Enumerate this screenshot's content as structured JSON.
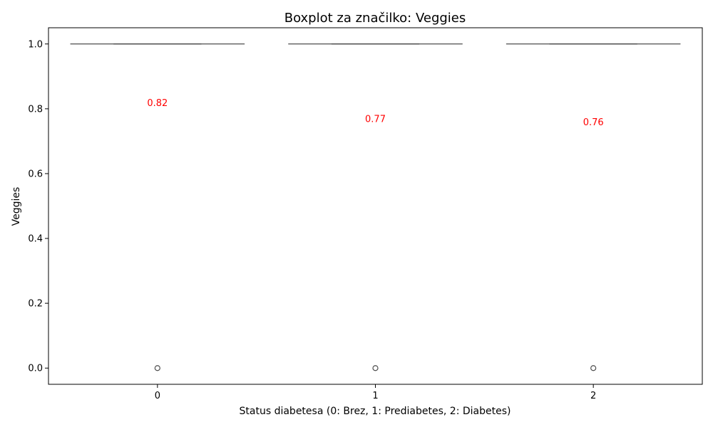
{
  "chart_data": {
    "type": "box",
    "title": "Boxplot za značilko: Veggies",
    "xlabel": "Status diabetesa (0: Brez, 1: Prediabetes, 2: Diabetes)",
    "ylabel": "Veggies",
    "categories": [
      "0",
      "1",
      "2"
    ],
    "ylim": [
      -0.05,
      1.05
    ],
    "yticks": [
      0.0,
      0.2,
      0.4,
      0.6,
      0.8,
      1.0
    ],
    "ytick_labels": [
      "0.0",
      "0.2",
      "0.4",
      "0.6",
      "0.8",
      "1.0"
    ],
    "grid": false,
    "legend": "none",
    "boxes": [
      {
        "category": "0",
        "min": 1.0,
        "q1": 1.0,
        "median": 1.0,
        "q3": 1.0,
        "max": 1.0,
        "outliers": [
          0.0
        ]
      },
      {
        "category": "1",
        "min": 1.0,
        "q1": 1.0,
        "median": 1.0,
        "q3": 1.0,
        "max": 1.0,
        "outliers": [
          0.0
        ]
      },
      {
        "category": "2",
        "min": 1.0,
        "q1": 1.0,
        "median": 1.0,
        "q3": 1.0,
        "max": 1.0,
        "outliers": [
          0.0
        ]
      }
    ],
    "mean_labels": [
      {
        "category": "0",
        "value": 0.82,
        "label": "0.82"
      },
      {
        "category": "1",
        "value": 0.77,
        "label": "0.77"
      },
      {
        "category": "2",
        "value": 0.76,
        "label": "0.76"
      }
    ],
    "colors": {
      "box_line": "#4d4d4d",
      "annotation": "#ff0000",
      "axis": "#000000"
    }
  }
}
